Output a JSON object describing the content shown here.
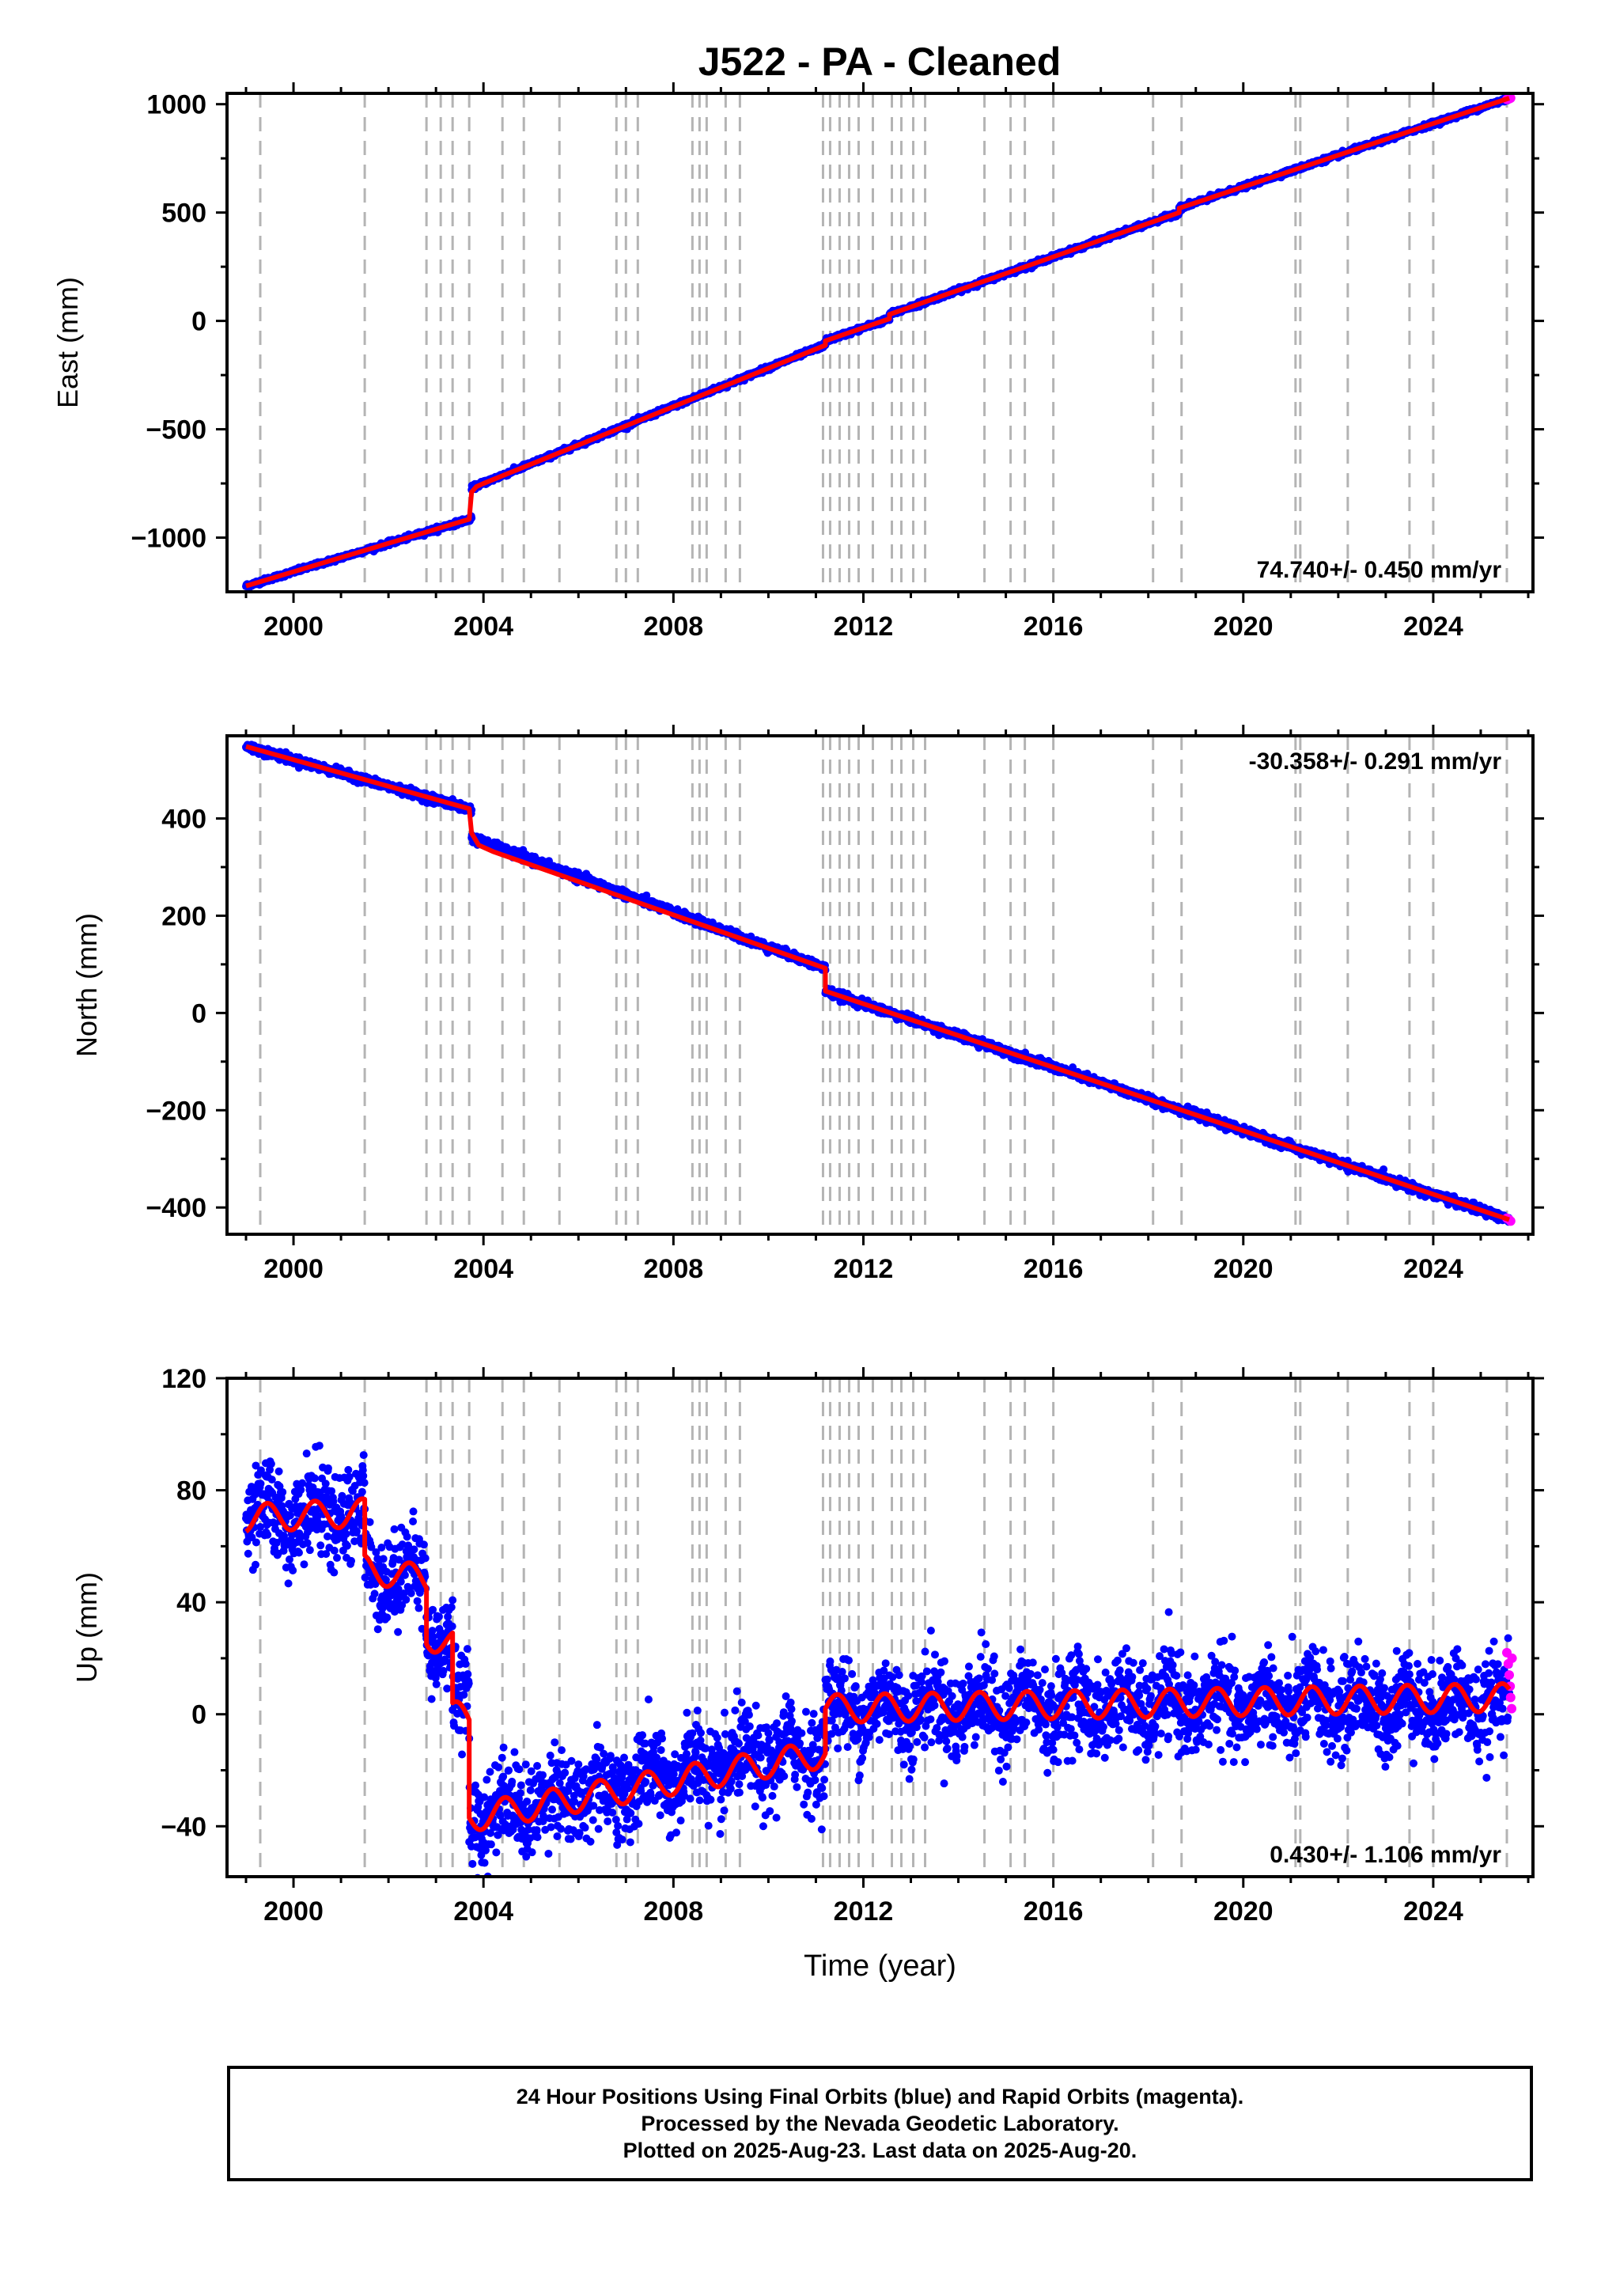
{
  "title": "J522  - PA - Cleaned",
  "footer": {
    "line1": "24 Hour Positions Using Final Orbits (blue) and Rapid Orbits (magenta).",
    "line2": "Processed by the Nevada Geodetic Laboratory.",
    "line3": "Plotted on 2025-Aug-23. Last data on 2025-Aug-20."
  },
  "colors": {
    "final_orbits": "#0000ff",
    "rapid_orbits": "#ff00ff",
    "model_fit": "#ff0000",
    "event_lines": "#b4b4b4"
  },
  "chart_data": [
    {
      "type": "scatter",
      "panel": "east",
      "ylabel": "East (mm)",
      "xlabel": "",
      "xlim": [
        1998.6,
        2026.1
      ],
      "ylim": [
        -1250,
        1050
      ],
      "xticks": [
        "2000",
        "2004",
        "2008",
        "2012",
        "2016",
        "2020",
        "2024"
      ],
      "yticks": [
        "1000",
        "500",
        "0",
        "−500",
        "−1000"
      ],
      "rate_label": "74.740+/- 0.450 mm/yr",
      "rate_label_position": "bottom-right",
      "event_lines_x": [
        1999.3,
        2001.5,
        2002.8,
        2003.1,
        2003.35,
        2003.7,
        2004.4,
        2004.85,
        2005.6,
        2006.8,
        2007.0,
        2007.25,
        2008.4,
        2008.55,
        2008.7,
        2009.1,
        2009.4,
        2011.15,
        2011.3,
        2011.5,
        2011.7,
        2011.9,
        2012.2,
        2012.6,
        2012.8,
        2013.05,
        2013.3,
        2014.55,
        2015.1,
        2015.4,
        2016.0,
        2018.1,
        2018.7,
        2021.1,
        2021.2,
        2022.2,
        2023.5,
        2024.0,
        2025.55
      ],
      "series": [
        {
          "name": "Final Orbits",
          "color": "#0000ff",
          "kind": "points",
          "segments": [
            {
              "x0": 1999.0,
              "y0": -1223,
              "x1": 2003.75,
              "y1": -912
            },
            {
              "x0": 2003.75,
              "y0": -770,
              "x1": 2011.2,
              "y1": -110
            },
            {
              "x0": 2011.2,
              "y0": -92,
              "x1": 2012.55,
              "y1": 10
            },
            {
              "x0": 2012.55,
              "y0": 30,
              "x1": 2018.65,
              "y1": 500
            },
            {
              "x0": 2018.65,
              "y0": 520,
              "x1": 2025.6,
              "y1": 1028
            }
          ],
          "noise": 5
        },
        {
          "name": "Rapid Orbits",
          "color": "#ff00ff",
          "kind": "points",
          "points": [
            [
              2025.55,
              1022
            ],
            [
              2025.6,
              1025
            ],
            [
              2025.63,
              1028
            ]
          ]
        },
        {
          "name": "Model",
          "color": "#ff0000",
          "kind": "line",
          "points": [
            [
              1999.0,
              -1223
            ],
            [
              2003.7,
              -915
            ],
            [
              2003.75,
              -790
            ],
            [
              2003.85,
              -765
            ],
            [
              2004.0,
              -750
            ],
            [
              2011.2,
              -112
            ],
            [
              2011.2,
              -92
            ],
            [
              2012.55,
              10
            ],
            [
              2012.55,
              30
            ],
            [
              2018.65,
              500
            ],
            [
              2018.65,
              520
            ],
            [
              2025.6,
              1028
            ]
          ]
        }
      ]
    },
    {
      "type": "scatter",
      "panel": "north",
      "ylabel": "North (mm)",
      "xlabel": "",
      "xlim": [
        1998.6,
        2026.1
      ],
      "ylim": [
        -455,
        570
      ],
      "xticks": [
        "2000",
        "2004",
        "2008",
        "2012",
        "2016",
        "2020",
        "2024"
      ],
      "yticks": [
        "400",
        "200",
        "0",
        "−200",
        "−400"
      ],
      "rate_label": "-30.358+/- 0.291 mm/yr",
      "rate_label_position": "top-right",
      "event_lines_x": [
        1999.3,
        2001.5,
        2002.8,
        2003.1,
        2003.35,
        2003.7,
        2004.4,
        2004.85,
        2005.6,
        2006.8,
        2007.0,
        2007.25,
        2008.4,
        2008.55,
        2008.7,
        2009.1,
        2009.4,
        2011.15,
        2011.3,
        2011.5,
        2011.7,
        2011.9,
        2012.2,
        2012.6,
        2012.8,
        2013.05,
        2013.3,
        2014.55,
        2015.1,
        2015.4,
        2016.0,
        2018.1,
        2018.7,
        2021.1,
        2021.2,
        2022.2,
        2023.5,
        2024.0,
        2025.55
      ],
      "series": [
        {
          "name": "Final Orbits",
          "color": "#0000ff",
          "kind": "points",
          "segments": [
            {
              "x0": 1999.0,
              "y0": 548,
              "x1": 2003.75,
              "y1": 418
            },
            {
              "x0": 2003.75,
              "y0": 360,
              "x1": 2011.2,
              "y1": 92
            },
            {
              "x0": 2011.2,
              "y0": 45,
              "x1": 2025.6,
              "y1": -425
            }
          ],
          "noise": 4
        },
        {
          "name": "Rapid Orbits",
          "color": "#ff00ff",
          "kind": "points",
          "points": [
            [
              2025.55,
              -422
            ],
            [
              2025.6,
              -425
            ],
            [
              2025.63,
              -428
            ]
          ]
        },
        {
          "name": "Model",
          "color": "#ff0000",
          "kind": "line",
          "points": [
            [
              1999.0,
              548
            ],
            [
              2003.7,
              420
            ],
            [
              2003.75,
              370
            ],
            [
              2003.9,
              345
            ],
            [
              2004.2,
              332
            ],
            [
              2011.2,
              92
            ],
            [
              2011.2,
              45
            ],
            [
              2025.6,
              -425
            ]
          ]
        }
      ]
    },
    {
      "type": "scatter",
      "panel": "up",
      "ylabel": "Up (mm)",
      "xlabel": "Time (year)",
      "xlim": [
        1998.6,
        2026.1
      ],
      "ylim": [
        -58,
        120
      ],
      "xticks": [
        "2000",
        "2004",
        "2008",
        "2012",
        "2016",
        "2020",
        "2024"
      ],
      "yticks": [
        "120",
        "80",
        "40",
        "0",
        "−40"
      ],
      "rate_label": "0.430+/- 1.106 mm/yr",
      "rate_label_position": "bottom-right",
      "event_lines_x": [
        1999.3,
        2001.5,
        2002.8,
        2003.1,
        2003.35,
        2003.7,
        2004.4,
        2004.85,
        2005.6,
        2006.8,
        2007.0,
        2007.25,
        2008.4,
        2008.55,
        2008.7,
        2009.1,
        2009.4,
        2011.15,
        2011.3,
        2011.5,
        2011.7,
        2011.9,
        2012.2,
        2012.6,
        2012.8,
        2013.05,
        2013.3,
        2014.55,
        2015.1,
        2015.4,
        2016.0,
        2018.1,
        2018.7,
        2021.1,
        2021.2,
        2022.2,
        2023.5,
        2024.0,
        2025.55
      ],
      "series": [
        {
          "name": "Final Orbits",
          "color": "#0000ff",
          "kind": "points",
          "segments": [
            {
              "x0": 1999.0,
              "y0": 70,
              "x1": 2001.5,
              "y1": 72
            },
            {
              "x0": 2001.5,
              "y0": 52,
              "x1": 2002.8,
              "y1": 48
            },
            {
              "x0": 2002.8,
              "y0": 30,
              "x1": 2003.35,
              "y1": 25
            },
            {
              "x0": 2003.35,
              "y0": 5,
              "x1": 2003.7,
              "y1": 2
            },
            {
              "x0": 2003.7,
              "y0": -36,
              "x1": 2011.2,
              "y1": -12
            },
            {
              "x0": 2011.2,
              "y0": 2,
              "x1": 2025.6,
              "y1": 4
            }
          ],
          "noise": 8,
          "seasonal": 5
        },
        {
          "name": "Rapid Orbits",
          "color": "#ff00ff",
          "kind": "points",
          "points": [
            [
              2025.55,
              22
            ],
            [
              2025.58,
              18
            ],
            [
              2025.6,
              14
            ],
            [
              2025.62,
              10
            ],
            [
              2025.63,
              6
            ],
            [
              2025.65,
              2
            ],
            [
              2025.66,
              20
            ]
          ]
        },
        {
          "name": "Model",
          "color": "#ff0000",
          "kind": "line",
          "segments": [
            {
              "x0": 1999.0,
              "y0": 70,
              "x1": 2001.5,
              "y1": 72
            },
            {
              "x0": 2001.5,
              "y0": 52,
              "x1": 2002.8,
              "y1": 48
            },
            {
              "x0": 2002.8,
              "y0": 28,
              "x1": 2003.35,
              "y1": 25
            },
            {
              "x0": 2003.35,
              "y0": 0,
              "x1": 2003.7,
              "y1": -2
            },
            {
              "x0": 2003.7,
              "y0": -37,
              "x1": 2011.2,
              "y1": -14
            },
            {
              "x0": 2011.2,
              "y0": 2,
              "x1": 2025.6,
              "y1": 6
            }
          ],
          "seasonal": 5
        }
      ]
    }
  ]
}
